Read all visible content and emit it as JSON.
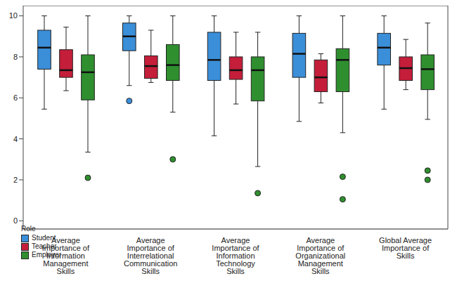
{
  "chart_data": {
    "type": "box",
    "legend_title": "Role",
    "legend": "lower left",
    "grid": true,
    "categories": [
      "Average Importance of Information Management Skills",
      "Average Importance of Interrelational Communication Skills",
      "Average Importance of Information Technology Skills",
      "Average Importance of Organizational Management Skills",
      "Global Average Importance of Skills"
    ],
    "ylim": [
      -0.4,
      10.5
    ],
    "yticks": [
      0,
      2,
      4,
      6,
      8,
      10
    ],
    "series": [
      {
        "name": "Student",
        "color": "#3b8fd9",
        "values": [
          {
            "min": 5.45,
            "q1": 7.4,
            "median": 8.45,
            "q3": 9.3,
            "max": 10,
            "outliers": []
          },
          {
            "min": 6.6,
            "q1": 8.3,
            "median": 9.0,
            "q3": 9.65,
            "max": 10,
            "outliers": [
              5.85
            ]
          },
          {
            "min": 4.15,
            "q1": 6.85,
            "median": 7.85,
            "q3": 9.2,
            "max": 10,
            "outliers": []
          },
          {
            "min": 4.85,
            "q1": 7.0,
            "median": 8.15,
            "q3": 9.15,
            "max": 10,
            "outliers": []
          },
          {
            "min": 5.45,
            "q1": 7.6,
            "median": 8.45,
            "q3": 9.15,
            "max": 10,
            "outliers": []
          }
        ]
      },
      {
        "name": "Teacher",
        "color": "#c41e3a",
        "values": [
          {
            "min": 6.35,
            "q1": 7.0,
            "median": 7.35,
            "q3": 8.35,
            "max": 9.45,
            "outliers": []
          },
          {
            "min": 6.75,
            "q1": 6.95,
            "median": 7.55,
            "q3": 8.05,
            "max": 9.3,
            "outliers": []
          },
          {
            "min": 5.7,
            "q1": 6.9,
            "median": 7.35,
            "q3": 8.0,
            "max": 9.2,
            "outliers": []
          },
          {
            "min": 5.75,
            "q1": 6.3,
            "median": 7.0,
            "q3": 7.85,
            "max": 8.15,
            "outliers": []
          },
          {
            "min": 6.4,
            "q1": 6.85,
            "median": 7.45,
            "q3": 8.0,
            "max": 8.85,
            "outliers": []
          }
        ]
      },
      {
        "name": "Employer",
        "color": "#2f8f2f",
        "values": [
          {
            "min": 3.35,
            "q1": 5.9,
            "median": 7.25,
            "q3": 8.1,
            "max": 10,
            "outliers": [
              2.1
            ]
          },
          {
            "min": 5.3,
            "q1": 6.85,
            "median": 7.6,
            "q3": 8.6,
            "max": 10,
            "outliers": [
              3.0
            ]
          },
          {
            "min": 2.65,
            "q1": 5.85,
            "median": 7.35,
            "q3": 8.0,
            "max": 9.2,
            "outliers": [
              1.35
            ]
          },
          {
            "min": 4.3,
            "q1": 6.3,
            "median": 7.85,
            "q3": 8.4,
            "max": 10,
            "outliers": [
              2.15,
              1.05
            ]
          },
          {
            "min": 4.95,
            "q1": 6.4,
            "median": 7.4,
            "q3": 8.1,
            "max": 9.65,
            "outliers": [
              2.45,
              2.0
            ]
          }
        ]
      }
    ]
  }
}
